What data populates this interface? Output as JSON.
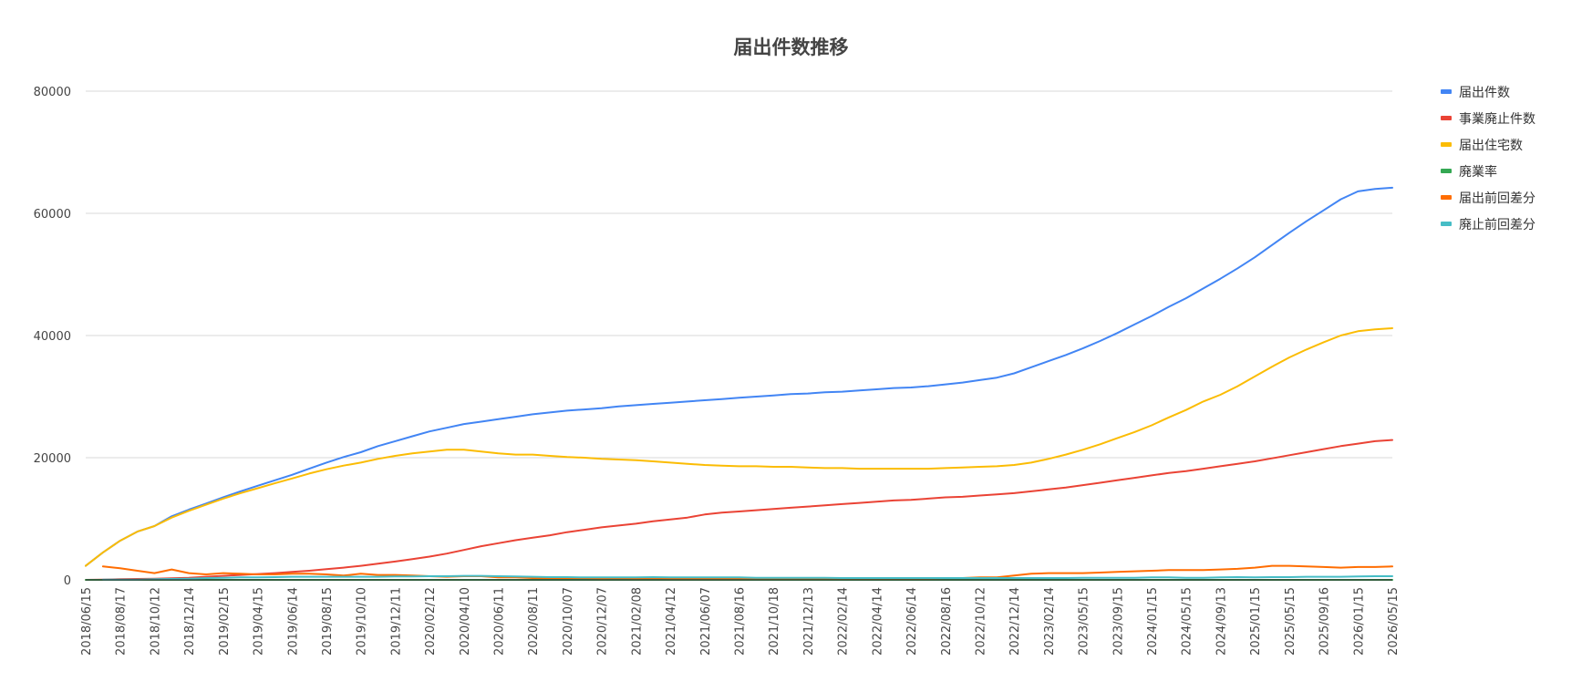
{
  "chart_data": {
    "type": "line",
    "title": "届出件数推移",
    "xlabel": "",
    "ylabel": "",
    "ylim": [
      0,
      80000
    ],
    "yticks": [
      0,
      20000,
      40000,
      60000,
      80000
    ],
    "yticklabels": [
      "0",
      "20000",
      "40000",
      "60000",
      "80000"
    ],
    "grid": true,
    "legend_position": "right",
    "x_ticklabels": [
      "2018/06/15",
      "2018/08/17",
      "2018/10/12",
      "2018/12/14",
      "2019/02/15",
      "2019/04/15",
      "2019/06/14",
      "2019/08/15",
      "2019/10/10",
      "2019/12/11",
      "2020/02/12",
      "2020/04/10",
      "2020/06/11",
      "2020/08/11",
      "2020/10/07",
      "2020/12/07",
      "2021/02/08",
      "2021/04/12",
      "2021/06/07",
      "2021/08/16",
      "2021/10/18",
      "2021/12/13",
      "2022/02/14",
      "2022/04/14",
      "2022/06/14",
      "2022/08/16",
      "2022/10/12",
      "2022/12/14",
      "2023/02/14",
      "2023/05/15",
      "2023/09/15",
      "2024/01/15",
      "2024/05/15",
      "2024/09/13",
      "2025/01/15",
      "2025/05/15",
      "2025/09/16",
      "2026/01/15",
      "2026/05/15"
    ],
    "x_tick_index": [
      0,
      2,
      4,
      6,
      8,
      10,
      12,
      14,
      16,
      18,
      20,
      22,
      24,
      26,
      28,
      30,
      32,
      34,
      36,
      38,
      40,
      42,
      44,
      46,
      48,
      50,
      52,
      54,
      56,
      58,
      60,
      62,
      64,
      66,
      68,
      70,
      72,
      74,
      76
    ],
    "point_count": 77,
    "series": [
      {
        "name": "届出件数",
        "color": "#4285f4",
        "start_index": 0,
        "values": [
          2300,
          4500,
          6400,
          7900,
          8800,
          10400,
          11500,
          12500,
          13500,
          14500,
          15400,
          16300,
          17200,
          18200,
          19200,
          20100,
          20900,
          21900,
          22700,
          23500,
          24300,
          24900,
          25500,
          25900,
          26300,
          26700,
          27100,
          27400,
          27700,
          27900,
          28100,
          28400,
          28600,
          28800,
          29000,
          29200,
          29400,
          29600,
          29800,
          30000,
          30200,
          30400,
          30500,
          30700,
          30800,
          31000,
          31200,
          31400,
          31500,
          31700,
          32000,
          32300,
          32700,
          33100,
          33800,
          34800,
          35800,
          36800,
          37900,
          39100,
          40400,
          41800,
          43200,
          44700,
          46100,
          47700,
          49300,
          51000,
          52800,
          54800,
          56800,
          58700,
          60500,
          62300,
          63600,
          64000,
          64200
        ]
      },
      {
        "name": "事業廃止件数",
        "color": "#ea4335",
        "start_index": 0,
        "values": [
          0,
          50,
          100,
          150,
          200,
          250,
          350,
          500,
          650,
          800,
          950,
          1100,
          1300,
          1500,
          1750,
          2000,
          2300,
          2650,
          3000,
          3400,
          3800,
          4300,
          4900,
          5500,
          6000,
          6500,
          6900,
          7300,
          7800,
          8200,
          8600,
          8900,
          9200,
          9600,
          9900,
          10200,
          10700,
          11000,
          11200,
          11400,
          11600,
          11800,
          12000,
          12200,
          12400,
          12600,
          12800,
          13000,
          13100,
          13300,
          13500,
          13600,
          13800,
          14000,
          14200,
          14500,
          14800,
          15100,
          15500,
          15900,
          16300,
          16700,
          17100,
          17500,
          17800,
          18200,
          18600,
          19000,
          19400,
          19900,
          20400,
          20900,
          21400,
          21900,
          22300,
          22700,
          22900
        ]
      },
      {
        "name": "届出住宅数",
        "color": "#fbbc04",
        "start_index": 0,
        "values": [
          2300,
          4500,
          6400,
          7900,
          8800,
          10200,
          11300,
          12300,
          13300,
          14200,
          15000,
          15800,
          16600,
          17400,
          18100,
          18700,
          19200,
          19800,
          20300,
          20700,
          21000,
          21300,
          21300,
          21000,
          20700,
          20500,
          20500,
          20300,
          20100,
          20000,
          19800,
          19700,
          19600,
          19400,
          19200,
          19000,
          18800,
          18700,
          18600,
          18600,
          18500,
          18500,
          18400,
          18300,
          18300,
          18200,
          18200,
          18200,
          18200,
          18200,
          18300,
          18400,
          18500,
          18600,
          18800,
          19200,
          19800,
          20500,
          21300,
          22200,
          23200,
          24200,
          25300,
          26600,
          27800,
          29200,
          30300,
          31700,
          33300,
          34900,
          36400,
          37700,
          38900,
          40000,
          40700,
          41000,
          41200
        ]
      },
      {
        "name": "廃業率",
        "color": "#34a853",
        "start_index": 0,
        "values": [
          0,
          0,
          0,
          0,
          0,
          0,
          0,
          0,
          0,
          0,
          0,
          0,
          0,
          0,
          0,
          0,
          0,
          0,
          0,
          0,
          0,
          0,
          0,
          0,
          0,
          0,
          0,
          0,
          0,
          0,
          0,
          0,
          0,
          0,
          0,
          0,
          0,
          0,
          0,
          0,
          0,
          0,
          0,
          0,
          0,
          0,
          0,
          0,
          0,
          0,
          0,
          0,
          0,
          0,
          0,
          0,
          0,
          0,
          0,
          0,
          0,
          0,
          0,
          0,
          0,
          0,
          0,
          0,
          0,
          0,
          0,
          0,
          0,
          0,
          0,
          0,
          0
        ]
      },
      {
        "name": "届出前回差分",
        "color": "#ff6d01",
        "start_index": 1,
        "values": [
          2200,
          1900,
          1500,
          1100,
          1700,
          1100,
          900,
          1100,
          1000,
          900,
          900,
          1000,
          1000,
          900,
          700,
          1000,
          800,
          800,
          700,
          600,
          500,
          600,
          600,
          400,
          400,
          300,
          300,
          300,
          300,
          250,
          300,
          250,
          300,
          250,
          250,
          250,
          250,
          250,
          250,
          250,
          250,
          250,
          250,
          250,
          250,
          250,
          250,
          250,
          250,
          300,
          300,
          400,
          400,
          700,
          1000,
          1100,
          1100,
          1100,
          1200,
          1300,
          1400,
          1500,
          1600,
          1600,
          1600,
          1700,
          1800,
          2000,
          2300,
          2300,
          2200,
          2100,
          2000,
          2100,
          2100,
          2200
        ]
      },
      {
        "name": "廃止前回差分",
        "color": "#46bdc6",
        "start_index": 1,
        "values": [
          50,
          50,
          50,
          100,
          150,
          200,
          300,
          350,
          400,
          400,
          450,
          500,
          500,
          500,
          500,
          500,
          500,
          550,
          550,
          600,
          600,
          650,
          650,
          600,
          550,
          500,
          450,
          450,
          400,
          400,
          400,
          400,
          450,
          400,
          400,
          400,
          400,
          400,
          350,
          350,
          350,
          350,
          350,
          300,
          300,
          300,
          300,
          300,
          300,
          300,
          300,
          300,
          300,
          300,
          300,
          300,
          300,
          350,
          350,
          350,
          350,
          400,
          400,
          350,
          350,
          400,
          450,
          400,
          450,
          450,
          500,
          500,
          500,
          550,
          600,
          600
        ]
      }
    ]
  }
}
